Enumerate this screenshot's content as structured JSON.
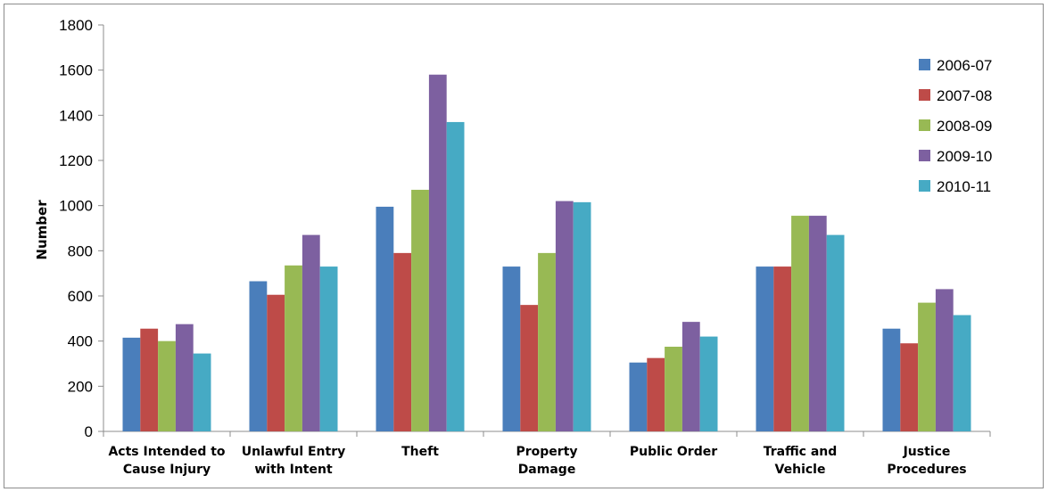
{
  "chart_data": {
    "type": "bar",
    "title": "",
    "xlabel": "",
    "ylabel": "Number",
    "ylim": [
      0,
      1800
    ],
    "yticks": [
      0,
      200,
      400,
      600,
      800,
      1000,
      1200,
      1400,
      1600,
      1800
    ],
    "grid": false,
    "legend_position": "right",
    "categories": [
      [
        "Acts Intended to",
        "Cause Injury"
      ],
      [
        "Unlawful Entry",
        "with Intent"
      ],
      [
        "Theft"
      ],
      [
        "Property",
        "Damage"
      ],
      [
        "Public Order"
      ],
      [
        "Traffic and",
        "Vehicle"
      ],
      [
        "Justice",
        "Procedures"
      ]
    ],
    "series": [
      {
        "name": "2006-07",
        "color": "#4a7ebb",
        "values": [
          415,
          665,
          995,
          730,
          305,
          730,
          455
        ]
      },
      {
        "name": "2007-08",
        "color": "#be4b48",
        "values": [
          455,
          605,
          790,
          560,
          325,
          730,
          390
        ]
      },
      {
        "name": "2008-09",
        "color": "#98b954",
        "values": [
          400,
          735,
          1070,
          790,
          375,
          955,
          570
        ]
      },
      {
        "name": "2009-10",
        "color": "#7d60a0",
        "values": [
          475,
          870,
          1580,
          1020,
          485,
          955,
          630
        ]
      },
      {
        "name": "2010-11",
        "color": "#46aac4",
        "values": [
          345,
          730,
          1370,
          1015,
          420,
          870,
          515
        ]
      }
    ]
  }
}
